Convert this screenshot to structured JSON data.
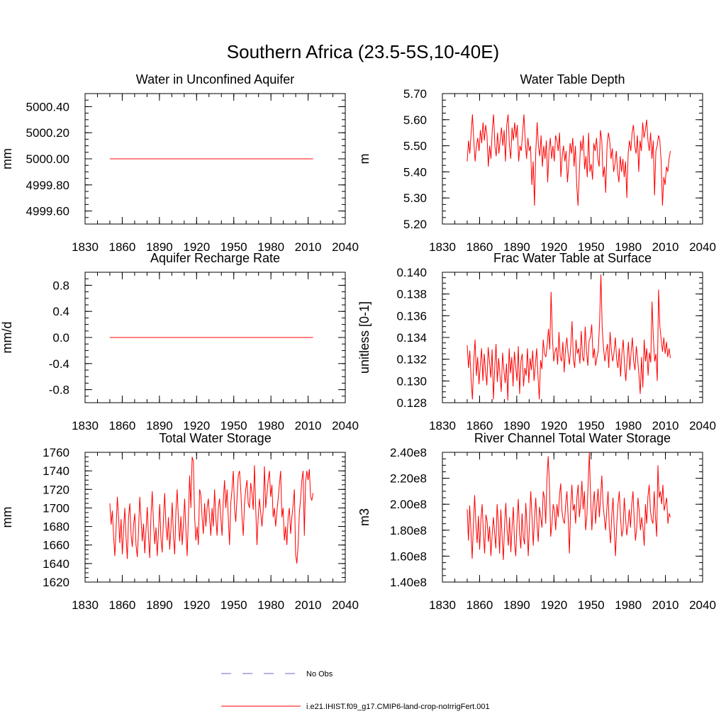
{
  "figure": {
    "title": "Southern Africa (23.5-5S,10-40E)"
  },
  "legend": {
    "placement": "bottom-center",
    "entries": [
      {
        "label": "No Obs",
        "color": "#6a6ac4",
        "style": "dashed"
      },
      {
        "label": "i.e21.IHIST.f09_g17.CMIP6-land-crop-noIrrigFert.001",
        "color": "#ff0000",
        "style": "solid"
      }
    ]
  },
  "chart_data": [
    {
      "type": "line",
      "title": "Water in Unconfined Aquifer",
      "xlabel": "",
      "ylabel": "mm",
      "xlim": [
        1830,
        2040
      ],
      "ylim": [
        4999.5,
        5000.5
      ],
      "xticks": [
        1830,
        1860,
        1890,
        1920,
        1950,
        1980,
        2010,
        2040
      ],
      "xtick_labels": [
        "1830",
        "1860",
        "1890",
        "1920",
        "1950",
        "1980",
        "2010",
        "2040"
      ],
      "yticks": [
        4999.6,
        4999.8,
        5000.0,
        5000.2,
        5000.4
      ],
      "ytick_labels": [
        "4999.60",
        "4999.80",
        "5000.00",
        "5000.20",
        "5000.40"
      ],
      "series": [
        {
          "color": "#ff0000",
          "x_start": 1850,
          "x_end": 2014,
          "values": [
            5000.0,
            5000.0
          ]
        }
      ]
    },
    {
      "type": "line",
      "title": "Water Table Depth",
      "xlabel": "",
      "ylabel": "m",
      "xlim": [
        1830,
        2040
      ],
      "ylim": [
        5.2,
        5.7
      ],
      "xticks": [
        1830,
        1860,
        1890,
        1920,
        1950,
        1980,
        2010,
        2040
      ],
      "xtick_labels": [
        "1830",
        "1860",
        "1890",
        "1920",
        "1950",
        "1980",
        "2010",
        "2040"
      ],
      "yticks": [
        5.2,
        5.3,
        5.4,
        5.5,
        5.6,
        5.7
      ],
      "ytick_labels": [
        "5.20",
        "5.30",
        "5.40",
        "5.50",
        "5.60",
        "5.70"
      ],
      "series": [
        {
          "color": "#ff0000",
          "x_start": 1850,
          "x_end": 2014,
          "values": [
            5.44,
            5.52,
            5.47,
            5.55,
            5.62,
            5.52,
            5.44,
            5.5,
            5.53,
            5.48,
            5.56,
            5.51,
            5.59,
            5.52,
            5.58,
            5.54,
            5.42,
            5.5,
            5.45,
            5.56,
            5.62,
            5.5,
            5.46,
            5.55,
            5.47,
            5.52,
            5.57,
            5.5,
            5.56,
            5.44,
            5.58,
            5.62,
            5.5,
            5.45,
            5.57,
            5.52,
            5.59,
            5.53,
            5.58,
            5.44,
            5.5,
            5.48,
            5.55,
            5.62,
            5.52,
            5.45,
            5.53,
            5.48,
            5.5,
            5.35,
            5.44,
            5.27,
            5.48,
            5.59,
            5.5,
            5.46,
            5.54,
            5.42,
            5.5,
            5.45,
            5.52,
            5.36,
            5.48,
            5.53,
            5.45,
            5.5,
            5.44,
            5.54,
            5.52,
            5.48,
            5.55,
            5.38,
            5.46,
            5.5,
            5.44,
            5.48,
            5.36,
            5.43,
            5.51,
            5.47,
            5.53,
            5.42,
            5.5,
            5.35,
            5.27,
            5.4,
            5.52,
            5.48,
            5.54,
            5.41,
            5.46,
            5.38,
            5.55,
            5.4,
            5.43,
            5.37,
            5.51,
            5.48,
            5.53,
            5.45,
            5.42,
            5.56,
            5.52,
            5.38,
            5.42,
            5.32,
            5.5,
            5.55,
            5.52,
            5.45,
            5.49,
            5.4,
            5.43,
            5.48,
            5.4,
            5.36,
            5.46,
            5.4,
            5.45,
            5.38,
            5.44,
            5.3,
            5.47,
            5.52,
            5.48,
            5.55,
            5.58,
            5.5,
            5.47,
            5.54,
            5.4,
            5.52,
            5.48,
            5.59,
            5.53,
            5.56,
            5.6,
            5.52,
            5.48,
            5.55,
            5.45,
            5.52,
            5.31,
            5.48,
            5.5,
            5.54,
            5.52,
            5.44,
            5.27,
            5.38,
            5.35,
            5.42,
            5.4,
            5.45,
            5.48
          ]
        }
      ]
    },
    {
      "type": "line",
      "title": "Aquifer Recharge Rate",
      "xlabel": "",
      "ylabel": "mm/d",
      "xlim": [
        1830,
        2040
      ],
      "ylim": [
        -1.0,
        1.0
      ],
      "xticks": [
        1830,
        1860,
        1890,
        1920,
        1950,
        1980,
        2010,
        2040
      ],
      "xtick_labels": [
        "1830",
        "1860",
        "1890",
        "1920",
        "1950",
        "1980",
        "2010",
        "2040"
      ],
      "yticks": [
        -0.8,
        -0.4,
        0.0,
        0.4,
        0.8
      ],
      "ytick_labels": [
        "-0.8",
        "-0.4",
        "0.0",
        "0.4",
        "0.8"
      ],
      "series": [
        {
          "color": "#ff0000",
          "x_start": 1850,
          "x_end": 2014,
          "values": [
            0.0,
            0.0
          ]
        }
      ]
    },
    {
      "type": "line",
      "title": "Frac Water Table at Surface",
      "xlabel": "",
      "ylabel": "unitless [0-1]",
      "xlim": [
        1830,
        2040
      ],
      "ylim": [
        0.128,
        0.14
      ],
      "xticks": [
        1830,
        1860,
        1890,
        1920,
        1950,
        1980,
        2010,
        2040
      ],
      "xtick_labels": [
        "1830",
        "1860",
        "1890",
        "1920",
        "1950",
        "1980",
        "2010",
        "2040"
      ],
      "yticks": [
        0.128,
        0.13,
        0.132,
        0.134,
        0.136,
        0.138,
        0.14
      ],
      "ytick_labels": [
        "0.128",
        "0.130",
        "0.132",
        "0.134",
        "0.136",
        "0.138",
        "0.140"
      ],
      "series": [
        {
          "color": "#ff0000",
          "x_start": 1850,
          "x_end": 2014,
          "values": [
            0.1333,
            0.1312,
            0.1328,
            0.1301,
            0.1283,
            0.1318,
            0.1338,
            0.1305,
            0.1322,
            0.1297,
            0.1315,
            0.133,
            0.13,
            0.1325,
            0.1309,
            0.1296,
            0.1331,
            0.1318,
            0.1303,
            0.1329,
            0.1283,
            0.1312,
            0.1334,
            0.1299,
            0.1321,
            0.1305,
            0.129,
            0.1326,
            0.131,
            0.1298,
            0.1316,
            0.1282,
            0.133,
            0.1307,
            0.1322,
            0.1295,
            0.1327,
            0.1313,
            0.13,
            0.1332,
            0.1288,
            0.1318,
            0.1325,
            0.1295,
            0.1312,
            0.1305,
            0.133,
            0.1298,
            0.1321,
            0.131,
            0.1328,
            0.13,
            0.1315,
            0.133,
            0.1305,
            0.1283,
            0.1319,
            0.1311,
            0.1338,
            0.1325,
            0.1322,
            0.1333,
            0.1348,
            0.1329,
            0.1382,
            0.134,
            0.1318,
            0.1327,
            0.1331,
            0.1315,
            0.1345,
            0.1322,
            0.1318,
            0.1336,
            0.1308,
            0.1329,
            0.134,
            0.1325,
            0.1315,
            0.1332,
            0.1355,
            0.132,
            0.1312,
            0.1338,
            0.1325,
            0.133,
            0.1316,
            0.1346,
            0.1322,
            0.1318,
            0.135,
            0.1328,
            0.1314,
            0.1337,
            0.134,
            0.1352,
            0.1321,
            0.133,
            0.1314,
            0.1322,
            0.1328,
            0.1354,
            0.1398,
            0.1348,
            0.133,
            0.1318,
            0.1327,
            0.1334,
            0.1312,
            0.1345,
            0.1328,
            0.1318,
            0.1326,
            0.134,
            0.132,
            0.1312,
            0.133,
            0.1304,
            0.1325,
            0.1338,
            0.1315,
            0.13,
            0.132,
            0.1336,
            0.131,
            0.1326,
            0.134,
            0.1318,
            0.131,
            0.1332,
            0.132,
            0.1306,
            0.1288,
            0.1322,
            0.1294,
            0.1338,
            0.1318,
            0.133,
            0.1305,
            0.1326,
            0.1317,
            0.1373,
            0.134,
            0.1318,
            0.1325,
            0.13,
            0.1384,
            0.135,
            0.1338,
            0.1327,
            0.134,
            0.1325,
            0.1336,
            0.1322,
            0.133,
            0.1321
          ]
        }
      ]
    },
    {
      "type": "line",
      "title": "Total Water Storage",
      "xlabel": "",
      "ylabel": "mm",
      "xlim": [
        1830,
        2040
      ],
      "ylim": [
        1620,
        1760
      ],
      "xticks": [
        1830,
        1860,
        1890,
        1920,
        1950,
        1980,
        2010,
        2040
      ],
      "xtick_labels": [
        "1830",
        "1860",
        "1890",
        "1920",
        "1950",
        "1980",
        "2010",
        "2040"
      ],
      "yticks": [
        1620,
        1640,
        1660,
        1680,
        1700,
        1720,
        1740,
        1760
      ],
      "ytick_labels": [
        "1620",
        "1640",
        "1660",
        "1680",
        "1700",
        "1720",
        "1740",
        "1760"
      ],
      "series": [
        {
          "color": "#ff0000",
          "x_start": 1850,
          "x_end": 2014,
          "values": [
            1705,
            1682,
            1697,
            1670,
            1648,
            1678,
            1712,
            1690,
            1662,
            1688,
            1650,
            1676,
            1700,
            1668,
            1645,
            1690,
            1705,
            1672,
            1658,
            1681,
            1694,
            1660,
            1647,
            1675,
            1712,
            1688,
            1664,
            1683,
            1651,
            1676,
            1701,
            1669,
            1646,
            1692,
            1718,
            1684,
            1661,
            1679,
            1648,
            1674,
            1704,
            1667,
            1652,
            1688,
            1716,
            1681,
            1665,
            1690,
            1655,
            1678,
            1706,
            1670,
            1650,
            1696,
            1720,
            1687,
            1664,
            1691,
            1660,
            1682,
            1710,
            1676,
            1648,
            1690,
            1735,
            1700,
            1755,
            1750,
            1690,
            1665,
            1680,
            1660,
            1720,
            1714,
            1690,
            1672,
            1705,
            1680,
            1700,
            1710,
            1690,
            1670,
            1700,
            1680,
            1720,
            1690,
            1670,
            1700,
            1710,
            1690,
            1670,
            1708,
            1730,
            1700,
            1720,
            1690,
            1660,
            1705,
            1720,
            1740,
            1700,
            1685,
            1710,
            1735,
            1740,
            1720,
            1690,
            1670,
            1705,
            1720,
            1730,
            1705,
            1700,
            1727,
            1716,
            1698,
            1746,
            1700,
            1660,
            1690,
            1710,
            1695,
            1680,
            1698,
            1745,
            1700,
            1715,
            1730,
            1740,
            1712,
            1725,
            1690,
            1700,
            1680,
            1696,
            1710,
            1725,
            1740,
            1690,
            1700,
            1665,
            1680,
            1660,
            1690,
            1700,
            1672,
            1690,
            1703,
            1720,
            1650,
            1640,
            1660,
            1694,
            1710,
            1730,
            1740,
            1670,
            1728,
            1740,
            1730,
            1742,
            1712,
            1708,
            1716
          ]
        }
      ]
    },
    {
      "type": "line",
      "title": "River Channel Total Water Storage",
      "xlabel": "",
      "ylabel": "m3",
      "xlim": [
        1830,
        2040
      ],
      "ylim": [
        140000000,
        240000000
      ],
      "xticks": [
        1830,
        1860,
        1890,
        1920,
        1950,
        1980,
        2010,
        2040
      ],
      "xtick_labels": [
        "1830",
        "1860",
        "1890",
        "1920",
        "1950",
        "1980",
        "2010",
        "2040"
      ],
      "yticks": [
        140000000,
        160000000,
        180000000,
        200000000,
        220000000,
        240000000
      ],
      "ytick_labels": [
        "1.40e8",
        "1.60e8",
        "1.80e8",
        "2.00e8",
        "2.20e8",
        "2.40e8"
      ],
      "series": [
        {
          "color": "#ff0000",
          "x_start": 1850,
          "x_end": 2014,
          "values": [
            196000000,
            172000000,
            199000000,
            180000000,
            158000000,
            185000000,
            207000000,
            184000000,
            170000000,
            191000000,
            165000000,
            188000000,
            200000000,
            178000000,
            162000000,
            192000000,
            187000000,
            171000000,
            183000000,
            160000000,
            176000000,
            190000000,
            178000000,
            166000000,
            200000000,
            185000000,
            162000000,
            196000000,
            175000000,
            157000000,
            184000000,
            201000000,
            180000000,
            168000000,
            190000000,
            163000000,
            182000000,
            198000000,
            170000000,
            160000000,
            187000000,
            204000000,
            178000000,
            166000000,
            193000000,
            175000000,
            169000000,
            201000000,
            183000000,
            160000000,
            186000000,
            210000000,
            190000000,
            168000000,
            189000000,
            205000000,
            185000000,
            171000000,
            198000000,
            190000000,
            182000000,
            210000000,
            205000000,
            185000000,
            220000000,
            237000000,
            215000000,
            175000000,
            185000000,
            200000000,
            195000000,
            180000000,
            200000000,
            190000000,
            206000000,
            216000000,
            195000000,
            188000000,
            185000000,
            200000000,
            210000000,
            190000000,
            162000000,
            198000000,
            215000000,
            195000000,
            200000000,
            185000000,
            205000000,
            215000000,
            190000000,
            200000000,
            218000000,
            196000000,
            210000000,
            180000000,
            190000000,
            215000000,
            240000000,
            205000000,
            180000000,
            200000000,
            210000000,
            185000000,
            200000000,
            212000000,
            190000000,
            205000000,
            222000000,
            200000000,
            190000000,
            180000000,
            196000000,
            210000000,
            182000000,
            170000000,
            192000000,
            205000000,
            180000000,
            160000000,
            185000000,
            200000000,
            210000000,
            190000000,
            175000000,
            180000000,
            205000000,
            190000000,
            176000000,
            184000000,
            196000000,
            182000000,
            200000000,
            210000000,
            188000000,
            172000000,
            182000000,
            205000000,
            195000000,
            180000000,
            190000000,
            182000000,
            168000000,
            200000000,
            185000000,
            206000000,
            215000000,
            195000000,
            188000000,
            185000000,
            210000000,
            190000000,
            175000000,
            230000000,
            205000000,
            210000000,
            200000000,
            215000000,
            195000000,
            200000000,
            205000000,
            185000000,
            193000000,
            190000000
          ]
        }
      ]
    }
  ]
}
